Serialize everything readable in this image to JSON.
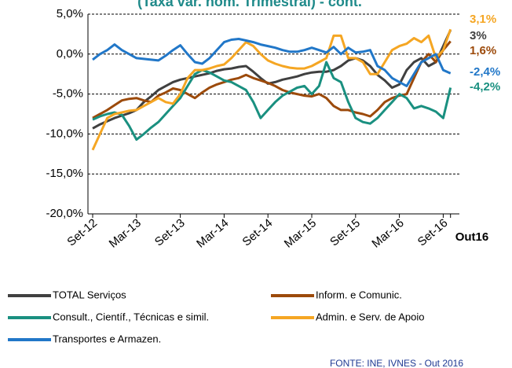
{
  "chart_data": {
    "type": "line",
    "title": "(Taxa var. hom. Trimestral) - cont.",
    "source": "FONTE: INE, IVNES - Out 2016",
    "categories": [
      "Set-12",
      null,
      null,
      null,
      null,
      null,
      "Mar-13",
      null,
      null,
      null,
      null,
      null,
      "Set-13",
      null,
      null,
      null,
      null,
      null,
      "Mar-14",
      null,
      null,
      null,
      null,
      null,
      "Set-14",
      null,
      null,
      null,
      null,
      null,
      "Mar-15",
      null,
      null,
      null,
      null,
      null,
      "Set-15",
      null,
      null,
      null,
      null,
      null,
      "Mar-16",
      null,
      null,
      null,
      null,
      null,
      "Set-16",
      "Out16"
    ],
    "ylim": [
      -20,
      5
    ],
    "yticks": [
      {
        "value": -20,
        "label": "-20,0%"
      },
      {
        "value": -15,
        "label": "-15,0%"
      },
      {
        "value": -10,
        "label": "-10,0%"
      },
      {
        "value": -5,
        "label": "-5,0%"
      },
      {
        "value": 0,
        "label": "0,0%"
      },
      {
        "value": 5,
        "label": "5,0%"
      }
    ],
    "grid": true,
    "series": [
      {
        "name": "TOTAL Serviços",
        "color": "#404040",
        "values": [
          -9.3,
          -8.8,
          -8.4,
          -8.0,
          -7.7,
          -7.4,
          -7.0,
          -6.0,
          -5.3,
          -4.5,
          -4.0,
          -3.5,
          -3.2,
          -3.0,
          -2.8,
          -2.6,
          -2.4,
          -2.1,
          -1.9,
          -1.8,
          -1.6,
          -1.5,
          -2.2,
          -3.0,
          -3.7,
          -3.5,
          -3.2,
          -3.0,
          -2.8,
          -2.5,
          -2.3,
          -2.2,
          -2.2,
          -2.0,
          -1.5,
          -0.8,
          -0.5,
          -0.8,
          -1.5,
          -2.6,
          -3.3,
          -4.2,
          -3.8,
          -2.0,
          -1.0,
          -0.5,
          -1.5,
          -1.0,
          1.0,
          3.0
        ],
        "value_labels": [
          null,
          null,
          null,
          null,
          null,
          null,
          null,
          null,
          null,
          null,
          null,
          null,
          null,
          null,
          null,
          null,
          null,
          null,
          null,
          null,
          null,
          null,
          null,
          null,
          null,
          null,
          null,
          null,
          null,
          null,
          null,
          null,
          null,
          null,
          null,
          null,
          null,
          null,
          null,
          null,
          null,
          null,
          null,
          null,
          null,
          null,
          null,
          null,
          null,
          "3%"
        ]
      },
      {
        "name": "Inform. e Comunic.",
        "color": "#9c4a0b",
        "values": [
          -8.0,
          -7.5,
          -7.0,
          -6.4,
          -5.8,
          -5.6,
          -5.5,
          -5.8,
          -6.0,
          -5.2,
          -4.8,
          -4.3,
          -4.5,
          -5.0,
          -5.5,
          -4.8,
          -4.2,
          -3.8,
          -3.5,
          -3.2,
          -3.0,
          -2.6,
          -3.0,
          -3.3,
          -3.6,
          -4.0,
          -4.5,
          -4.8,
          -5.0,
          -5.2,
          -5.3,
          -5.0,
          -5.5,
          -6.5,
          -7.0,
          -7.0,
          -7.3,
          -7.5,
          -7.8,
          -7.0,
          -6.0,
          -5.5,
          -5.2,
          -5.0,
          -3.0,
          -1.0,
          0.0,
          -1.0,
          0.5,
          1.6
        ],
        "value_labels": [
          null,
          null,
          null,
          null,
          null,
          null,
          null,
          null,
          null,
          null,
          null,
          null,
          null,
          null,
          null,
          null,
          null,
          null,
          null,
          null,
          null,
          null,
          null,
          null,
          null,
          null,
          null,
          null,
          null,
          null,
          null,
          null,
          null,
          null,
          null,
          null,
          null,
          null,
          null,
          null,
          null,
          null,
          null,
          null,
          null,
          null,
          null,
          null,
          null,
          "1,6%"
        ]
      },
      {
        "name": "Consult., Científ., Técnicas e simil.",
        "color": "#1a9080",
        "values": [
          -8.2,
          -7.8,
          -7.5,
          -7.3,
          -7.6,
          -9.0,
          -10.7,
          -10.0,
          -9.2,
          -8.5,
          -7.5,
          -6.5,
          -5.5,
          -4.0,
          -2.5,
          -2.0,
          -2.3,
          -2.8,
          -3.3,
          -3.5,
          -4.0,
          -4.5,
          -6.0,
          -8.0,
          -7.0,
          -6.0,
          -5.2,
          -4.7,
          -4.2,
          -4.0,
          -5.0,
          -4.0,
          -1.0,
          -3.0,
          -3.5,
          -6.0,
          -8.0,
          -8.5,
          -8.7,
          -8.0,
          -7.0,
          -6.0,
          -5.0,
          -5.5,
          -6.8,
          -6.5,
          -6.8,
          -7.2,
          -8.0,
          -4.2
        ],
        "value_labels": [
          null,
          null,
          null,
          null,
          null,
          null,
          null,
          null,
          null,
          null,
          null,
          null,
          null,
          null,
          null,
          null,
          null,
          null,
          null,
          null,
          null,
          null,
          null,
          null,
          null,
          null,
          null,
          null,
          null,
          null,
          null,
          null,
          null,
          null,
          null,
          null,
          null,
          null,
          null,
          null,
          null,
          null,
          null,
          null,
          null,
          null,
          null,
          null,
          null,
          "-4,2%"
        ]
      },
      {
        "name": "Admin. e Serv. de Apoio",
        "color": "#f5a623",
        "values": [
          -12.0,
          -10.0,
          -8.0,
          -7.5,
          -7.3,
          -7.1,
          -7.0,
          -6.5,
          -6.0,
          -5.5,
          -6.0,
          -6.2,
          -5.0,
          -3.0,
          -2.0,
          -2.0,
          -1.8,
          -1.5,
          -1.3,
          -0.5,
          0.5,
          1.5,
          1.0,
          0.0,
          -0.8,
          -1.2,
          -1.5,
          -1.7,
          -1.8,
          -1.8,
          -1.5,
          -1.0,
          -0.5,
          2.3,
          2.3,
          -0.5,
          -0.5,
          -1.0,
          -2.5,
          -2.5,
          -1.0,
          0.5,
          1.0,
          1.3,
          2.0,
          1.5,
          2.3,
          -0.5,
          0.5,
          3.1
        ],
        "value_labels": [
          null,
          null,
          null,
          null,
          null,
          null,
          null,
          null,
          null,
          null,
          null,
          null,
          null,
          null,
          null,
          null,
          null,
          null,
          null,
          null,
          null,
          null,
          null,
          null,
          null,
          null,
          null,
          null,
          null,
          null,
          null,
          null,
          null,
          null,
          null,
          null,
          null,
          null,
          null,
          null,
          null,
          null,
          null,
          null,
          null,
          null,
          null,
          null,
          null,
          "3,1%"
        ]
      },
      {
        "name": "Transportes e Armazen.",
        "color": "#2177c8",
        "values": [
          -0.7,
          0.0,
          0.5,
          1.2,
          0.5,
          0.0,
          -0.5,
          -0.6,
          -0.7,
          -0.8,
          -0.2,
          0.5,
          1.1,
          0.0,
          -1.0,
          -1.2,
          -0.5,
          0.5,
          1.5,
          1.8,
          1.9,
          1.7,
          1.5,
          1.2,
          1.0,
          0.8,
          0.5,
          0.3,
          0.3,
          0.5,
          0.8,
          0.5,
          0.2,
          0.9,
          0.0,
          0.8,
          0.2,
          0.3,
          0.5,
          -1.5,
          -2.0,
          -3.0,
          -3.5,
          -4.0,
          -2.5,
          -1.0,
          -0.5,
          0.0,
          -2.0,
          -2.4
        ],
        "value_labels": [
          null,
          null,
          null,
          null,
          null,
          null,
          null,
          null,
          null,
          null,
          null,
          null,
          null,
          null,
          null,
          null,
          null,
          null,
          null,
          null,
          null,
          null,
          null,
          null,
          null,
          null,
          null,
          null,
          null,
          null,
          null,
          null,
          null,
          null,
          null,
          null,
          null,
          null,
          null,
          null,
          null,
          null,
          null,
          null,
          null,
          null,
          null,
          null,
          null,
          "-2,4%"
        ]
      }
    ]
  }
}
